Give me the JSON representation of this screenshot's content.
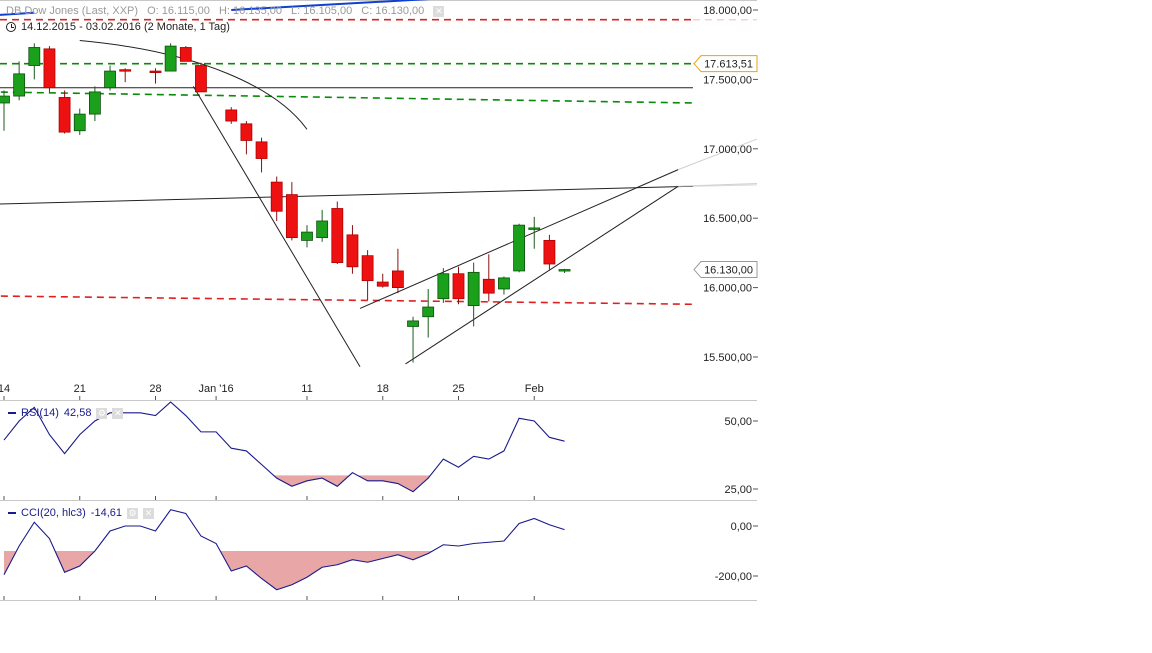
{
  "header": {
    "instrument": "DB Dow Jones (Last, XXP)",
    "open": "O: 16.115,00",
    "high": "H: 16.135,00",
    "low": "L: 16.105,00",
    "close": "C: 16.130,00",
    "range": "14.12.2015 - 03.02.2016 (2 Monate, 1 Tag)"
  },
  "rsi_label": {
    "name": "RSI(14)",
    "value": "42,58"
  },
  "cci_label": {
    "name": "CCI(20, hlc3)",
    "value": "-14,61"
  },
  "icons": {
    "gear": "gear-icon",
    "close": "close-icon",
    "clock": "clock-icon"
  },
  "colors": {
    "up": "#1aa01a",
    "down": "#ee1111",
    "indicator": "#1a1a8c",
    "fill": "#e8a6a6",
    "green_dash": "#0a8a0a",
    "red_dash": "#e02020",
    "trend_blue": "#1040d0"
  },
  "chart_data": [
    {
      "type": "candlestick",
      "title": "DB Dow Jones (Last, XXP)",
      "ylim": [
        15300,
        18100
      ],
      "x_ticks": [
        {
          "label": "14",
          "i": 0
        },
        {
          "label": "21",
          "i": 5
        },
        {
          "label": "28",
          "i": 10
        },
        {
          "label": "Jan '16",
          "i": 14
        },
        {
          "label": "11",
          "i": 20
        },
        {
          "label": "18",
          "i": 25
        },
        {
          "label": "25",
          "i": 30
        },
        {
          "label": "Feb",
          "i": 35
        }
      ],
      "y_ticks": [
        {
          "value": 18000,
          "label": "18.000,00"
        },
        {
          "value": 17500,
          "label": "17.500,00"
        },
        {
          "value": 17000,
          "label": "17.000,00"
        },
        {
          "value": 16500,
          "label": "16.500,00"
        },
        {
          "value": 16000,
          "label": "16.000,00"
        },
        {
          "value": 15500,
          "label": "15.500,00"
        }
      ],
      "price_tags": [
        {
          "value": 17613.51,
          "label": "17.613,51",
          "color": "#e8a020"
        },
        {
          "value": 16130,
          "label": "16.130,00",
          "color": "#999999"
        }
      ],
      "candles": [
        {
          "i": 0,
          "o": 17330,
          "h": 17420,
          "l": 17130,
          "c": 17380
        },
        {
          "i": 1,
          "o": 17380,
          "h": 17630,
          "l": 17350,
          "c": 17540
        },
        {
          "i": 2,
          "o": 17600,
          "h": 17760,
          "l": 17500,
          "c": 17730
        },
        {
          "i": 3,
          "o": 17720,
          "h": 17740,
          "l": 17410,
          "c": 17440
        },
        {
          "i": 4,
          "o": 17370,
          "h": 17420,
          "l": 17110,
          "c": 17120
        },
        {
          "i": 5,
          "o": 17130,
          "h": 17290,
          "l": 17100,
          "c": 17250
        },
        {
          "i": 6,
          "o": 17250,
          "h": 17450,
          "l": 17200,
          "c": 17410
        },
        {
          "i": 7,
          "o": 17440,
          "h": 17600,
          "l": 17420,
          "c": 17560
        },
        {
          "i": 8,
          "o": 17570,
          "h": 17580,
          "l": 17480,
          "c": 17560
        },
        {
          "i": 10,
          "o": 17560,
          "h": 17580,
          "l": 17470,
          "c": 17550
        },
        {
          "i": 11,
          "o": 17560,
          "h": 17760,
          "l": 17560,
          "c": 17740
        },
        {
          "i": 12,
          "o": 17730,
          "h": 17740,
          "l": 17630,
          "c": 17630
        },
        {
          "i": 13,
          "o": 17600,
          "h": 17620,
          "l": 17410,
          "c": 17410
        },
        {
          "i": 15,
          "o": 17280,
          "h": 17300,
          "l": 17180,
          "c": 17200
        },
        {
          "i": 16,
          "o": 17180,
          "h": 17200,
          "l": 16960,
          "c": 17060
        },
        {
          "i": 17,
          "o": 17050,
          "h": 17080,
          "l": 16830,
          "c": 16930
        },
        {
          "i": 18,
          "o": 16760,
          "h": 16800,
          "l": 16480,
          "c": 16550
        },
        {
          "i": 19,
          "o": 16670,
          "h": 16760,
          "l": 16340,
          "c": 16360
        },
        {
          "i": 20,
          "o": 16340,
          "h": 16450,
          "l": 16290,
          "c": 16400
        },
        {
          "i": 21,
          "o": 16360,
          "h": 16560,
          "l": 16330,
          "c": 16480
        },
        {
          "i": 22,
          "o": 16570,
          "h": 16620,
          "l": 16170,
          "c": 16180
        },
        {
          "i": 23,
          "o": 16380,
          "h": 16450,
          "l": 16100,
          "c": 16150
        },
        {
          "i": 24,
          "o": 16230,
          "h": 16270,
          "l": 15910,
          "c": 16050
        },
        {
          "i": 25,
          "o": 16040,
          "h": 16100,
          "l": 16000,
          "c": 16010
        },
        {
          "i": 26,
          "o": 16120,
          "h": 16280,
          "l": 15960,
          "c": 16000
        },
        {
          "i": 27,
          "o": 15720,
          "h": 15790,
          "l": 15460,
          "c": 15760
        },
        {
          "i": 28,
          "o": 15790,
          "h": 15990,
          "l": 15640,
          "c": 15860
        },
        {
          "i": 29,
          "o": 15920,
          "h": 16140,
          "l": 15890,
          "c": 16100
        },
        {
          "i": 30,
          "o": 16100,
          "h": 16150,
          "l": 15880,
          "c": 15920
        },
        {
          "i": 31,
          "o": 15870,
          "h": 16180,
          "l": 15720,
          "c": 16110
        },
        {
          "i": 32,
          "o": 16060,
          "h": 16240,
          "l": 15900,
          "c": 15960
        },
        {
          "i": 33,
          "o": 15990,
          "h": 16080,
          "l": 15950,
          "c": 16070
        },
        {
          "i": 34,
          "o": 16120,
          "h": 16460,
          "l": 16110,
          "c": 16450
        },
        {
          "i": 35,
          "o": 16420,
          "h": 16510,
          "l": 16280,
          "c": 16430
        },
        {
          "i": 36,
          "o": 16340,
          "h": 16380,
          "l": 16130,
          "c": 16170
        },
        {
          "i": 37,
          "o": 16120,
          "h": 16135,
          "l": 16105,
          "c": 16130
        }
      ],
      "horizontal_lines": [
        {
          "value": 17613.51,
          "style": "dashed",
          "color": "#0a8a0a"
        },
        {
          "value": 17930,
          "style": "dashed",
          "color": "#e02020"
        },
        {
          "value": 17440,
          "style": "solid",
          "color": "#222222"
        }
      ],
      "trend_lines": [
        {
          "from": [
            -1,
            17410
          ],
          "to": [
            45.5,
            17330
          ],
          "style": "dashed",
          "color": "#0a8a0a"
        },
        {
          "from": [
            -1,
            15940
          ],
          "to": [
            45.5,
            15880
          ],
          "style": "dashed",
          "color": "#e02020"
        },
        {
          "from": [
            -1,
            16600
          ],
          "to": [
            45.5,
            16730
          ],
          "style": "solid",
          "color": "#222222"
        },
        {
          "from": [
            12.5,
            17450
          ],
          "to": [
            23.5,
            15430
          ],
          "style": "solid",
          "color": "#222222"
        },
        {
          "from": [
            23.5,
            15850
          ],
          "to": [
            44.5,
            16850
          ],
          "style": "solid",
          "color": "#222222"
        },
        {
          "from": [
            26.5,
            15450
          ],
          "to": [
            44.5,
            16730
          ],
          "style": "solid",
          "color": "#222222"
        },
        {
          "from": [
            -1,
            17960
          ],
          "to": [
            2,
            17980
          ],
          "style": "solid",
          "color": "#1040d0"
        },
        {
          "from": [
            15,
            18000
          ],
          "to": [
            36.5,
            18130
          ],
          "style": "solid",
          "color": "#1040d0"
        }
      ],
      "annotations": [
        {
          "type": "arc",
          "points": [
            [
              5,
              17780
            ],
            [
              13,
              17700
            ],
            [
              18,
              17440
            ],
            [
              20,
              17140
            ]
          ],
          "color": "#222222"
        }
      ]
    },
    {
      "type": "line",
      "title": "RSI(14)",
      "ylim": [
        20,
        60
      ],
      "y_ticks": [
        {
          "value": 50,
          "label": "50,00"
        },
        {
          "value": 25,
          "label": "25,00"
        }
      ],
      "threshold": 30,
      "series": [
        {
          "name": "RSI(14)",
          "values": [
            43,
            50,
            55,
            45,
            38,
            45,
            50,
            53,
            53,
            53,
            52,
            57,
            52,
            46,
            46,
            40,
            39,
            34,
            29,
            26,
            28,
            29,
            26,
            31,
            28,
            28,
            27,
            24,
            29,
            36,
            33,
            37,
            36,
            39,
            51,
            50,
            44,
            42.58
          ],
          "offset": 0
        }
      ]
    },
    {
      "type": "line",
      "title": "CCI(20, hlc3)",
      "ylim": [
        -300,
        100
      ],
      "y_ticks": [
        {
          "value": 0,
          "label": "0,00"
        },
        {
          "value": -200,
          "label": "-200,00"
        }
      ],
      "threshold": -100,
      "series": [
        {
          "name": "CCI(20, hlc3)",
          "values": [
            -195,
            -80,
            15,
            -50,
            -185,
            -160,
            -100,
            -20,
            0,
            0,
            -20,
            65,
            50,
            -40,
            -70,
            -180,
            -160,
            -210,
            -255,
            -235,
            -205,
            -165,
            -155,
            -135,
            -145,
            -130,
            -115,
            -135,
            -110,
            -75,
            -80,
            -70,
            -65,
            -60,
            10,
            30,
            5,
            -14.61
          ],
          "offset": 0
        }
      ]
    }
  ]
}
